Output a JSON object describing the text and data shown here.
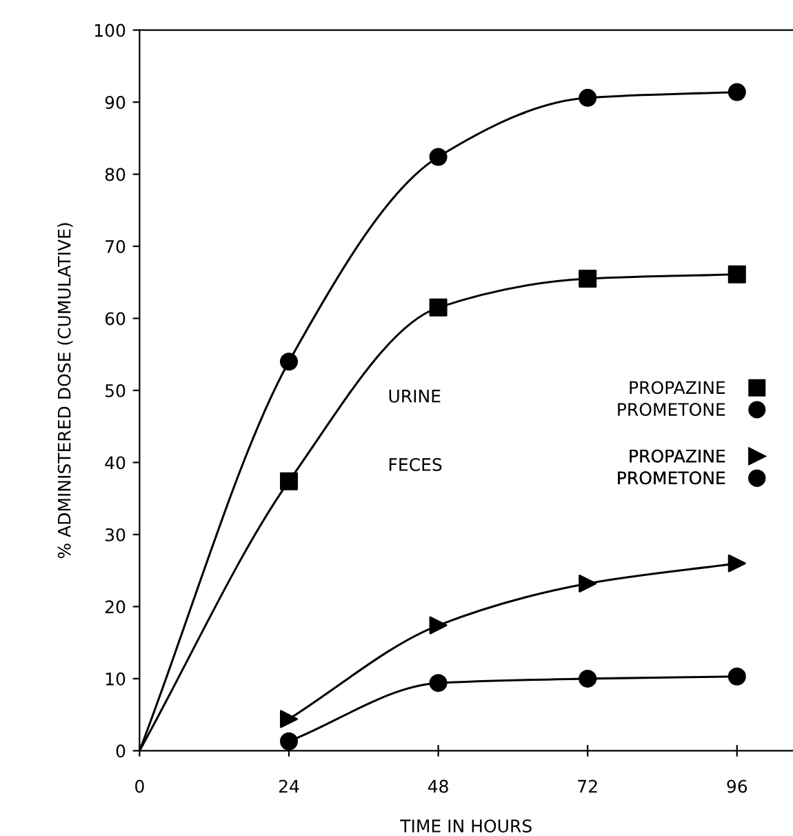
{
  "chart_data": {
    "type": "scatter",
    "xlabel": "TIME IN HOURS",
    "ylabel": "% ADMINISTERED DOSE (CUMULATIVE)",
    "xlim": [
      0,
      105
    ],
    "ylim": [
      0,
      100
    ],
    "xticks": [
      0,
      24,
      48,
      72,
      96
    ],
    "yticks": [
      0,
      10,
      20,
      30,
      40,
      50,
      60,
      70,
      80,
      90,
      100
    ],
    "grid": false,
    "legend": "right",
    "annotations": [
      "URINE",
      "FECES"
    ],
    "series": [
      {
        "name": "PROPAZINE",
        "color": "#000000",
        "marker": "square",
        "x": [
          24,
          48,
          72,
          96
        ],
        "values": [
          37.4,
          61.5,
          65.5,
          66.1
        ]
      },
      {
        "name": "PROMETONE",
        "color": "#000000",
        "marker": "circle",
        "x": [
          24,
          48,
          72,
          96
        ],
        "values": [
          54,
          82.4,
          90.6,
          91.4
        ]
      },
      {
        "name": "PROPAZINE",
        "color": "#000000",
        "marker": "triangle",
        "x": [
          24,
          48,
          72,
          96
        ],
        "values": [
          4.4,
          17.4,
          23.2,
          26
        ]
      },
      {
        "name": "PROMETONE",
        "color": "#000000",
        "marker": "circle",
        "x": [
          24,
          48,
          72,
          96
        ],
        "values": [
          1.3,
          9.4,
          10,
          10.3
        ]
      },
      {
        "type": "line",
        "color": "#000000",
        "marker": "none",
        "line_style": "solid",
        "x": [
          0,
          24,
          48,
          72,
          96
        ],
        "values": [
          0,
          37.4,
          61.5,
          65.5,
          66.1
        ]
      },
      {
        "type": "line",
        "color": "#000000",
        "marker": "none",
        "line_style": "solid",
        "x": [
          0,
          24,
          48,
          72,
          96
        ],
        "values": [
          0,
          54,
          82.4,
          90.6,
          91.4
        ]
      },
      {
        "type": "line",
        "color": "#000000",
        "marker": "none",
        "line_style": "solid",
        "x": [
          24,
          48,
          72,
          96
        ],
        "values": [
          4.4,
          17.4,
          23.2,
          26
        ]
      },
      {
        "type": "line",
        "color": "#000000",
        "marker": "none",
        "line_style": "solid",
        "x": [
          24,
          48,
          72,
          96
        ],
        "values": [
          1.3,
          9.4,
          10,
          10.3
        ]
      }
    ]
  }
}
